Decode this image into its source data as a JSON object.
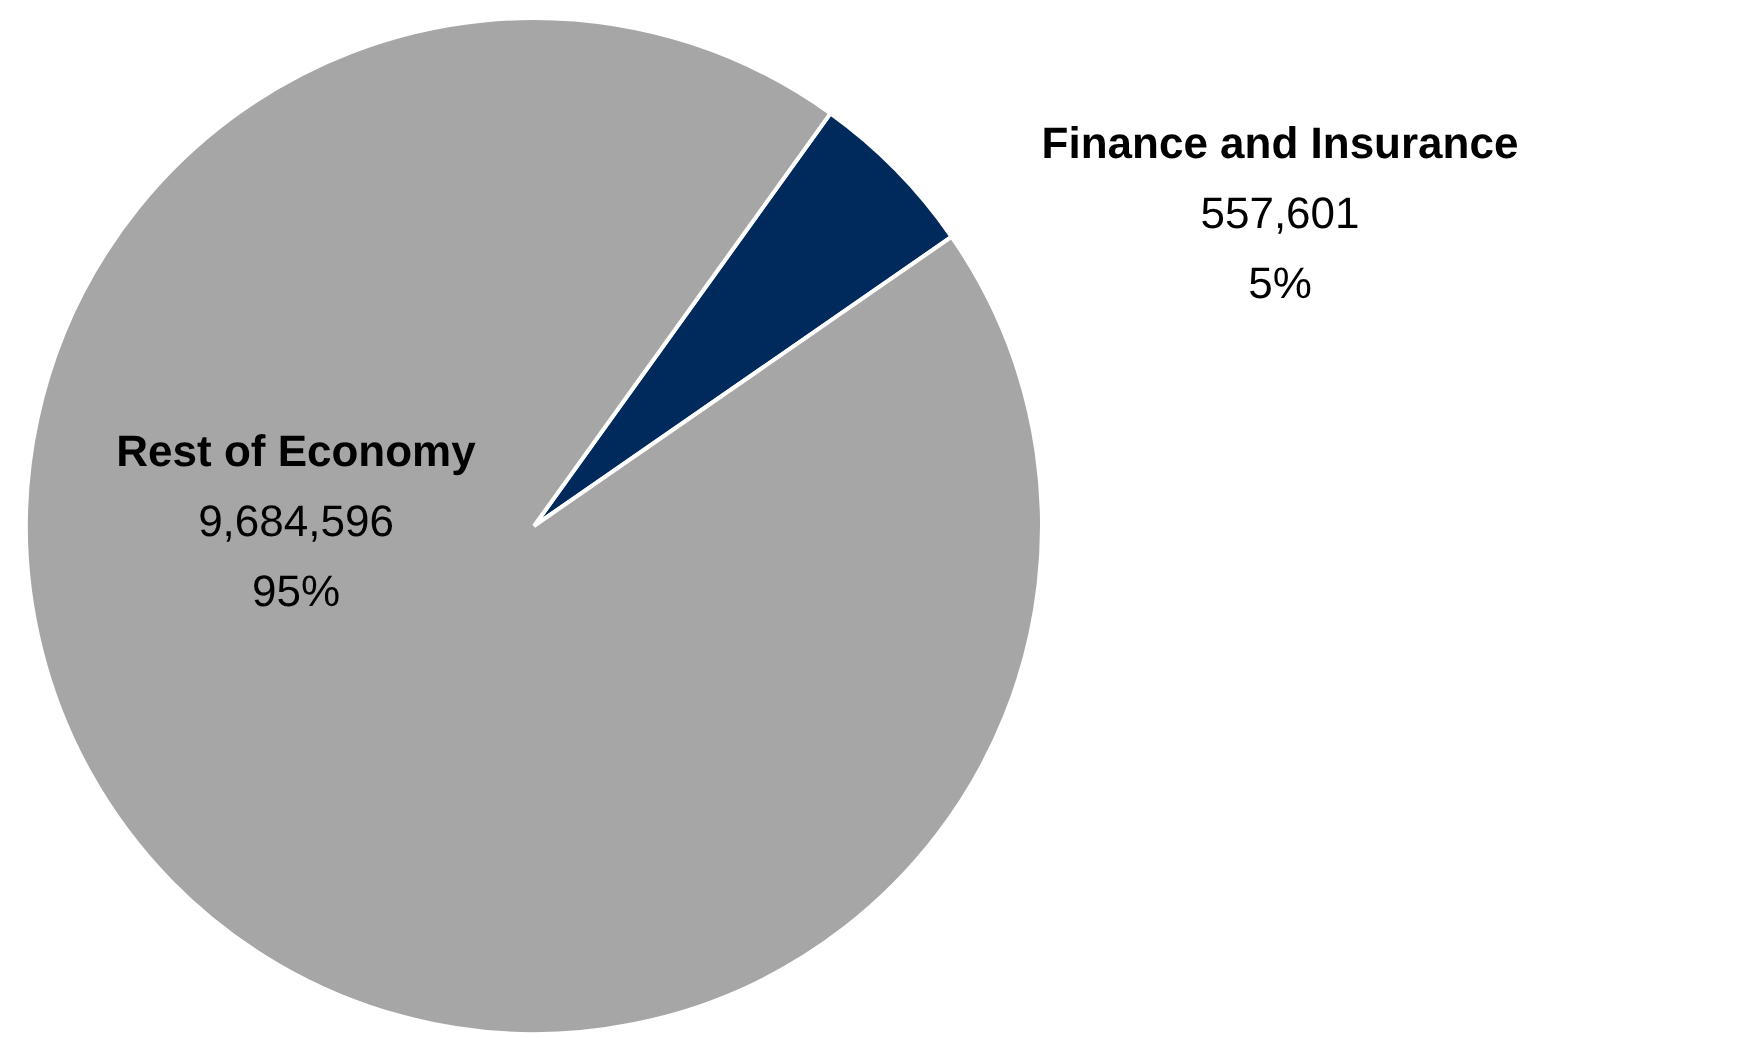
{
  "chart_data": {
    "type": "pie",
    "categories": [
      "Finance and Insurance",
      "Rest of Economy"
    ],
    "values": [
      557601,
      9684596
    ],
    "colors": [
      "#002a5c",
      "#a6a6a6"
    ],
    "value_labels": [
      "557,601",
      "9,684,596"
    ],
    "annotations": [
      "5%",
      "95%"
    ]
  }
}
